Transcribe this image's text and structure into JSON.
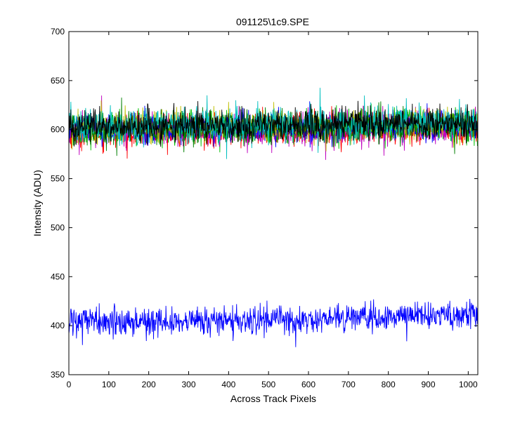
{
  "chart_data": {
    "type": "line",
    "title": "091125\\1c9.SPE",
    "xlabel": "Across Track Pixels",
    "ylabel": "Intensity (ADU)",
    "xlim": [
      0,
      1024
    ],
    "ylim": [
      350,
      700
    ],
    "x_ticks": [
      0,
      100,
      200,
      300,
      400,
      500,
      600,
      700,
      800,
      900,
      1000
    ],
    "y_ticks": [
      350,
      400,
      450,
      500,
      550,
      600,
      650,
      700
    ],
    "grid": false,
    "x_points": 1024,
    "series": [
      {
        "color": "#ff0000",
        "mean": 598,
        "noise": 8,
        "trend": 3
      },
      {
        "color": "#00bf00",
        "mean": 600,
        "noise": 8,
        "trend": 4
      },
      {
        "color": "#bf00bf",
        "mean": 599,
        "noise": 8,
        "trend": 3
      },
      {
        "color": "#0000ff",
        "mean": 600,
        "noise": 7,
        "trend": 4
      },
      {
        "color": "#bfbf00",
        "mean": 602,
        "noise": 8,
        "trend": 4
      },
      {
        "color": "#007f00",
        "mean": 601,
        "noise": 8,
        "trend": 4
      },
      {
        "color": "#00bfbf",
        "mean": 603,
        "noise": 9,
        "trend": 5
      },
      {
        "color": "#000000",
        "mean": 602,
        "noise": 8,
        "trend": 5
      },
      {
        "color": "#0000ff",
        "mean": 403,
        "noise": 7,
        "trend": 7
      }
    ]
  }
}
